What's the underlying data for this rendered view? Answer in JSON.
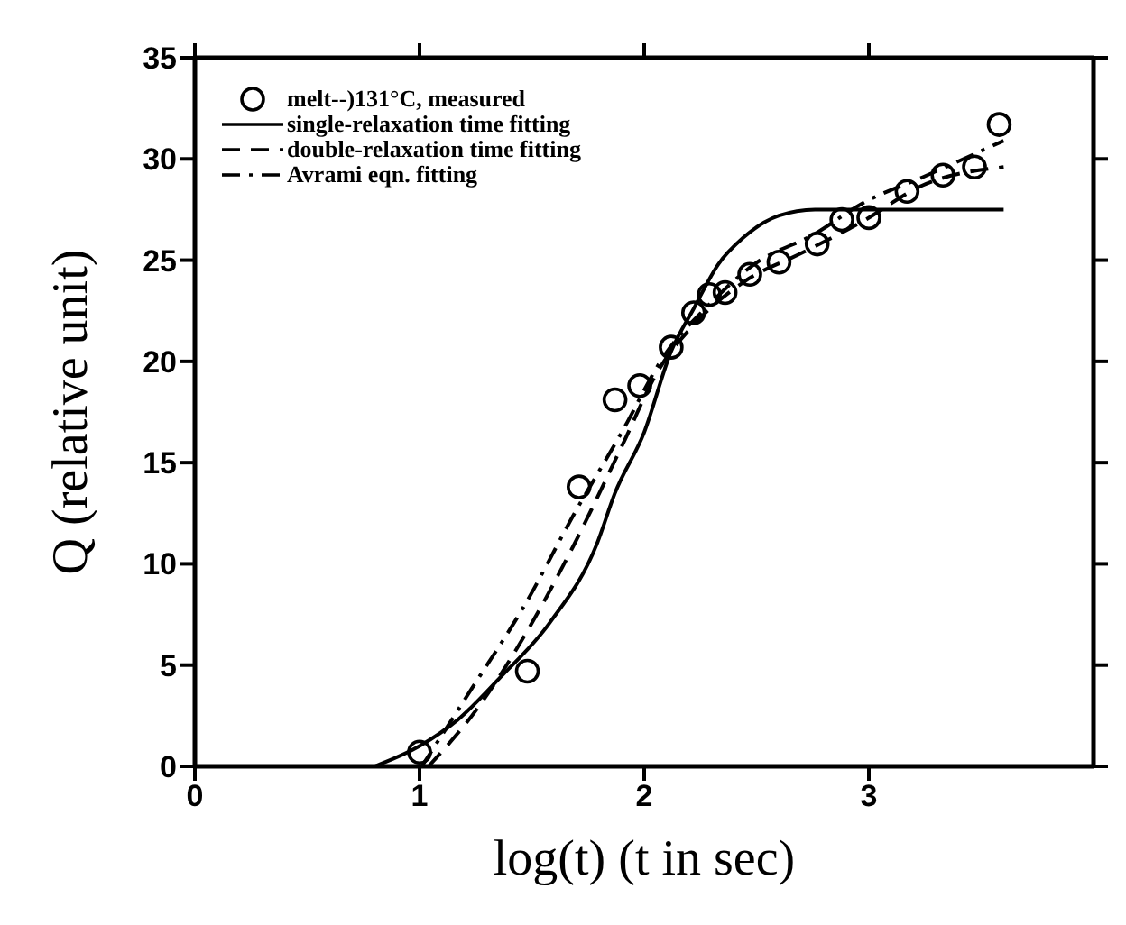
{
  "chart_data": {
    "type": "line",
    "xlabel": "log(t)  (t in sec)",
    "ylabel": "Q  (relative unit)",
    "xlim": [
      0,
      4
    ],
    "xticks": [
      0,
      1,
      2,
      3
    ],
    "ylim": [
      0,
      35
    ],
    "yticks": [
      0,
      5,
      10,
      15,
      20,
      25,
      30,
      35
    ],
    "legend": "top left",
    "series": [
      {
        "name": "melt--)131°C, measured",
        "type": "scatter",
        "marker": "circle",
        "color": "#000000",
        "x": [
          1.0,
          1.48,
          1.71,
          1.87,
          1.98,
          2.12,
          2.22,
          2.29,
          2.36,
          2.47,
          2.6,
          2.77,
          2.88,
          3.0,
          3.17,
          3.33,
          3.47,
          3.58
        ],
        "values": [
          0.7,
          4.7,
          13.8,
          18.1,
          18.8,
          20.7,
          22.4,
          23.3,
          23.4,
          24.3,
          24.9,
          25.8,
          27.0,
          27.1,
          28.4,
          29.2,
          29.6,
          31.7
        ]
      },
      {
        "name": "single-relaxation time fitting",
        "line_style": "solid",
        "color": "#000000",
        "x": [
          0.8,
          1.0,
          1.17,
          1.36,
          1.58,
          1.79,
          1.87,
          2.0,
          2.12,
          2.22,
          2.33,
          2.44,
          2.6,
          2.76,
          3.6
        ],
        "values": [
          0,
          1.0,
          2.3,
          4.4,
          7.1,
          11,
          13.5,
          16.5,
          20.5,
          22.6,
          24.8,
          26.1,
          27.2,
          27.5,
          27.5
        ]
      },
      {
        "name": "double-relaxation time fitting",
        "line_style": "dashed",
        "color": "#000000",
        "x": [
          1.04,
          1.26,
          1.47,
          1.69,
          1.9,
          2.06,
          2.22,
          2.44,
          2.71,
          2.97,
          3.24,
          3.6
        ],
        "values": [
          0,
          2.9,
          6.5,
          11,
          15.8,
          19.5,
          21.8,
          23.9,
          25.4,
          26.9,
          28.7,
          29.6
        ]
      },
      {
        "name": "Avrami eqn. fitting",
        "line_style": "dashdot",
        "color": "#000000",
        "x": [
          1.01,
          1.23,
          1.47,
          1.69,
          1.9,
          2.09,
          2.28,
          2.49,
          2.76,
          2.97,
          3.24,
          3.6
        ],
        "values": [
          0,
          3.8,
          8,
          12.5,
          16.5,
          20.3,
          22.7,
          24.8,
          26.3,
          27.8,
          29.1,
          30.9
        ]
      }
    ]
  }
}
